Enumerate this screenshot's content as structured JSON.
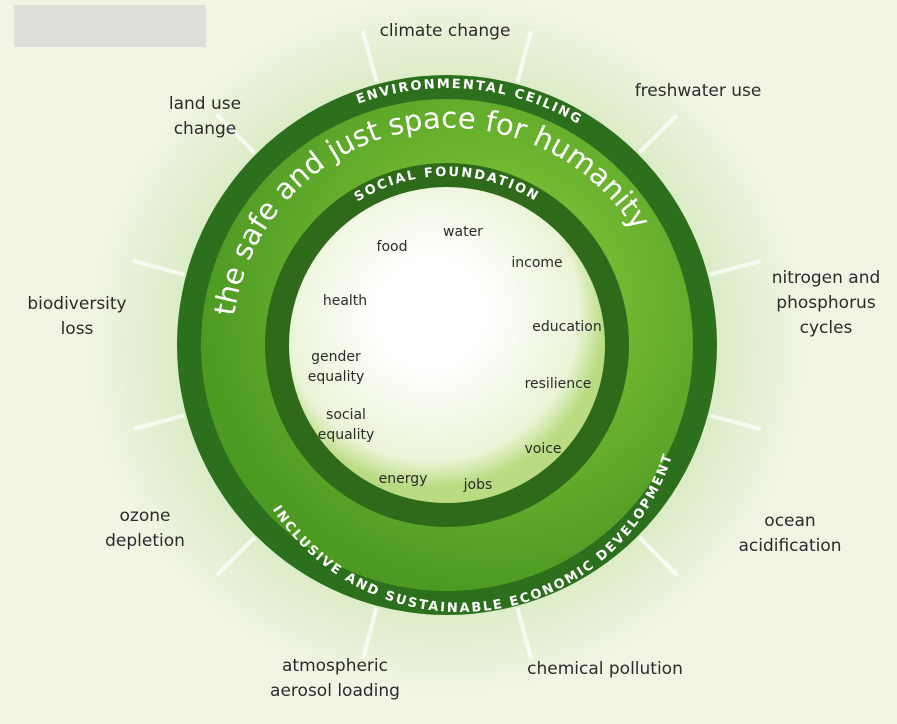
{
  "environmental_ceiling": {
    "label": "ENVIRONMENTAL CEILING",
    "boundaries": [
      {
        "lines": [
          "climate change"
        ]
      },
      {
        "lines": [
          "freshwater use"
        ]
      },
      {
        "lines": [
          "nitrogen and",
          "phosphorus",
          "cycles"
        ]
      },
      {
        "lines": [
          "ocean",
          "acidification"
        ]
      },
      {
        "lines": [
          "chemical pollution"
        ]
      },
      {
        "lines": [
          "atmospheric",
          "aerosol loading"
        ]
      },
      {
        "lines": [
          "ozone",
          "depletion"
        ]
      },
      {
        "lines": [
          "biodiversity",
          "loss"
        ]
      },
      {
        "lines": [
          "land use",
          "change"
        ]
      }
    ]
  },
  "safe_space": {
    "label": "the safe and just space for humanity"
  },
  "social_foundation": {
    "label": "SOCIAL FOUNDATION",
    "items": [
      {
        "lines": [
          "food"
        ]
      },
      {
        "lines": [
          "water"
        ]
      },
      {
        "lines": [
          "income"
        ]
      },
      {
        "lines": [
          "health"
        ]
      },
      {
        "lines": [
          "education"
        ]
      },
      {
        "lines": [
          "gender",
          "equality"
        ]
      },
      {
        "lines": [
          "resilience"
        ]
      },
      {
        "lines": [
          "social",
          "equality"
        ]
      },
      {
        "lines": [
          "voice"
        ]
      },
      {
        "lines": [
          "energy"
        ]
      },
      {
        "lines": [
          "jobs"
        ]
      }
    ]
  },
  "economic_development": {
    "label": "INCLUSIVE AND SUSTAINABLE ECONOMIC DEVELOPMENT"
  }
}
